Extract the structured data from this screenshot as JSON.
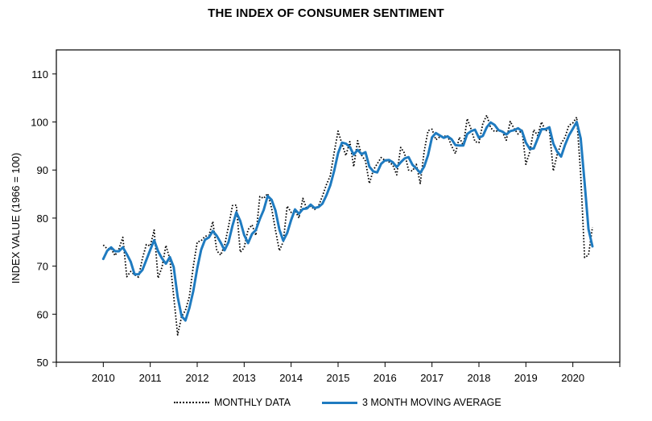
{
  "chart_data": {
    "type": "line",
    "title": "THE INDEX OF CONSUMER SENTIMENT",
    "ylabel": "INDEX VALUE (1966 = 100)",
    "xlabel": "",
    "ylim": [
      50,
      115
    ],
    "yticks": [
      50,
      60,
      70,
      80,
      90,
      100,
      110
    ],
    "xlim": [
      2009.0,
      2021.0
    ],
    "xticks": [
      "2010",
      "2011",
      "2012",
      "2013",
      "2014",
      "2015",
      "2016",
      "2017",
      "2018",
      "2019",
      "2020"
    ],
    "grid": false,
    "legend_position": "bottom",
    "series": [
      {
        "name": "MONTHLY DATA",
        "style": "dotted",
        "color": "#000000",
        "x_start": "2010-01",
        "frequency": "monthly",
        "values": [
          74.4,
          73.6,
          73.6,
          72.2,
          73.6,
          76.0,
          67.8,
          68.9,
          68.2,
          67.7,
          71.6,
          74.5,
          74.2,
          77.5,
          67.5,
          69.8,
          74.3,
          71.5,
          63.7,
          55.7,
          59.5,
          60.8,
          63.7,
          69.9,
          75.0,
          75.3,
          76.2,
          76.4,
          79.3,
          73.2,
          72.3,
          74.3,
          78.3,
          82.6,
          82.7,
          72.9,
          73.8,
          77.6,
          78.6,
          76.4,
          84.5,
          84.1,
          85.1,
          82.1,
          77.5,
          73.2,
          75.1,
          82.5,
          81.2,
          81.6,
          80.0,
          84.1,
          81.9,
          82.5,
          81.8,
          82.5,
          84.6,
          86.9,
          88.8,
          93.6,
          98.1,
          95.4,
          93.0,
          95.9,
          90.7,
          96.1,
          93.1,
          91.9,
          87.2,
          90.0,
          91.3,
          92.6,
          92.0,
          91.7,
          91.0,
          89.0,
          94.7,
          93.5,
          90.0,
          89.8,
          91.2,
          87.2,
          93.8,
          98.2,
          98.5,
          96.3,
          96.9,
          97.0,
          97.1,
          95.0,
          93.4,
          96.8,
          95.1,
          100.7,
          98.5,
          95.9,
          95.7,
          99.7,
          101.4,
          98.8,
          98.0,
          98.2,
          97.9,
          96.2,
          100.1,
          98.6,
          97.5,
          98.3,
          91.2,
          93.8,
          98.4,
          97.2,
          100.0,
          98.2,
          98.4,
          89.8,
          93.2,
          95.5,
          96.8,
          99.3,
          99.8,
          101.0,
          89.1,
          71.8,
          72.3,
          78.1
        ]
      },
      {
        "name": "3 MONTH MOVING AVERAGE",
        "style": "solid",
        "color": "#1f7bc0",
        "x_start": "2010-01",
        "frequency": "monthly",
        "values": [
          71.5,
          73.2,
          73.9,
          73.1,
          73.1,
          73.9,
          72.5,
          70.9,
          68.3,
          68.3,
          69.2,
          71.3,
          73.4,
          75.4,
          73.1,
          71.6,
          70.5,
          71.9,
          69.8,
          63.6,
          59.6,
          58.7,
          61.3,
          64.8,
          69.5,
          73.4,
          75.5,
          76.0,
          77.3,
          76.3,
          74.9,
          73.3,
          75.0,
          78.4,
          81.2,
          79.4,
          76.5,
          74.8,
          76.7,
          77.5,
          79.8,
          81.7,
          84.6,
          83.8,
          81.6,
          77.6,
          75.3,
          76.9,
          79.6,
          81.8,
          80.9,
          81.9,
          82.0,
          82.8,
          82.1,
          82.3,
          83.0,
          84.7,
          86.8,
          89.8,
          93.5,
          95.7,
          95.5,
          94.8,
          93.2,
          94.2,
          93.3,
          93.7,
          90.7,
          89.7,
          89.5,
          91.3,
          92.0,
          92.1,
          91.6,
          90.6,
          91.6,
          92.4,
          92.7,
          91.1,
          90.3,
          89.4,
          90.7,
          93.1,
          96.8,
          97.7,
          97.2,
          96.7,
          97.0,
          96.4,
          95.2,
          95.1,
          95.1,
          97.5,
          98.1,
          98.4,
          96.7,
          97.1,
          98.9,
          99.9,
          99.4,
          98.3,
          98.0,
          97.4,
          98.1,
          98.3,
          98.7,
          98.1,
          95.7,
          94.4,
          94.5,
          96.5,
          98.5,
          98.5,
          98.9,
          95.5,
          93.8,
          92.8,
          95.2,
          97.2,
          98.6,
          100.0,
          96.6,
          87.3,
          77.7,
          74.1
        ]
      }
    ]
  }
}
